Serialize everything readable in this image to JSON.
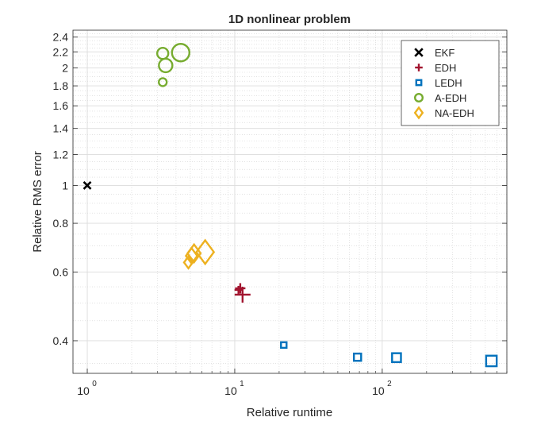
{
  "chart_data": {
    "type": "scatter",
    "title": "1D nonlinear problem",
    "xlabel": "Relative runtime",
    "ylabel": "Relative RMS error",
    "xscale": "log",
    "yscale": "log",
    "xlim": [
      0.8,
      700
    ],
    "ylim": [
      0.33,
      2.5
    ],
    "x_ticks": [
      {
        "value": 1,
        "base": "10",
        "exp": "0"
      },
      {
        "value": 10,
        "base": "10",
        "exp": "1"
      },
      {
        "value": 100,
        "base": "10",
        "exp": "2"
      }
    ],
    "y_ticks": [
      {
        "value": 0.4,
        "label": "0.4"
      },
      {
        "value": 0.6,
        "label": "0.6"
      },
      {
        "value": 0.8,
        "label": "0.8"
      },
      {
        "value": 1,
        "label": "1"
      },
      {
        "value": 1.2,
        "label": "1.2"
      },
      {
        "value": 1.4,
        "label": "1.4"
      },
      {
        "value": 1.6,
        "label": "1.6"
      },
      {
        "value": 1.8,
        "label": "1.8"
      },
      {
        "value": 2,
        "label": "2"
      },
      {
        "value": 2.2,
        "label": "2.2"
      },
      {
        "value": 2.4,
        "label": "2.4"
      }
    ],
    "grid": true,
    "minor_grid": true,
    "legend_position": "top-right",
    "series": [
      {
        "name": "EKF",
        "marker": "x",
        "color": "#000000",
        "points": [
          {
            "x": 1.0,
            "y": 1.0,
            "size": 1
          }
        ]
      },
      {
        "name": "EDH",
        "marker": "plus",
        "color": "#A2142F",
        "points": [
          {
            "x": 10.6,
            "y": 0.54,
            "size": 1
          },
          {
            "x": 10.9,
            "y": 0.545,
            "size": 1.3
          },
          {
            "x": 11.3,
            "y": 0.525,
            "size": 2
          }
        ]
      },
      {
        "name": "LEDH",
        "marker": "square",
        "color": "#0072BD",
        "points": [
          {
            "x": 21.5,
            "y": 0.39,
            "size": 1
          },
          {
            "x": 68,
            "y": 0.363,
            "size": 1.3
          },
          {
            "x": 125,
            "y": 0.362,
            "size": 1.6
          },
          {
            "x": 550,
            "y": 0.355,
            "size": 1.9
          }
        ]
      },
      {
        "name": "A-EDH",
        "marker": "circle",
        "color": "#77AC30",
        "points": [
          {
            "x": 3.25,
            "y": 1.84,
            "size": 1
          },
          {
            "x": 3.25,
            "y": 2.18,
            "size": 1.4
          },
          {
            "x": 3.4,
            "y": 2.03,
            "size": 1.7
          },
          {
            "x": 4.3,
            "y": 2.19,
            "size": 2.2
          }
        ]
      },
      {
        "name": "NA-EDH",
        "marker": "diamond",
        "color": "#EDB120",
        "points": [
          {
            "x": 4.85,
            "y": 0.635,
            "size": 1
          },
          {
            "x": 5.1,
            "y": 0.66,
            "size": 1.3
          },
          {
            "x": 5.3,
            "y": 0.67,
            "size": 1.5
          },
          {
            "x": 6.3,
            "y": 0.675,
            "size": 2
          }
        ]
      }
    ]
  }
}
